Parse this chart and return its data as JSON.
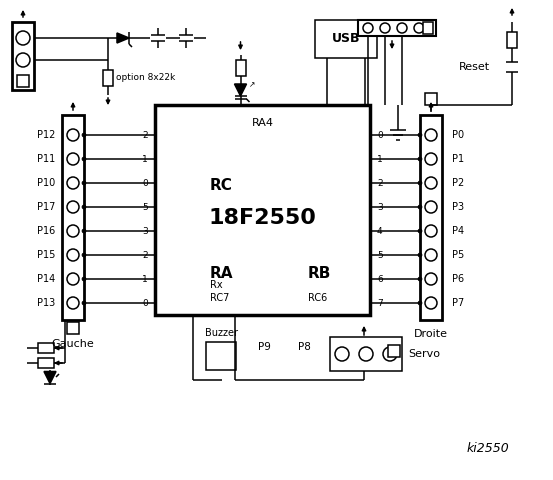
{
  "title": "ki2550",
  "bg_color": "#ffffff",
  "chip_label": "18F2550",
  "chip_ra4": "RA4",
  "rc_label": "RC",
  "ra_label": "RA",
  "rb_label": "RB",
  "option_label": "option 8x22k",
  "reset_label": "Reset",
  "usb_label": "USB",
  "rx_label": "Rx",
  "rc7_label": "RC7",
  "rc6_label": "RC6",
  "left_labels": [
    "P12",
    "P11",
    "P10",
    "P17",
    "P16",
    "P15",
    "P14",
    "P13"
  ],
  "right_labels": [
    "P0",
    "P1",
    "P2",
    "P3",
    "P4",
    "P5",
    "P6",
    "P7"
  ],
  "rc_nums": [
    "2",
    "1",
    "0"
  ],
  "ra_nums": [
    "5",
    "3",
    "2",
    "1",
    "0"
  ],
  "rb_nums": [
    "0",
    "1",
    "2",
    "3",
    "4",
    "5",
    "6",
    "7"
  ],
  "gauche_label": "Gauche",
  "droite_label": "Droite",
  "buzzer_label": "Buzzer",
  "p9_label": "P9",
  "p8_label": "P8",
  "servo_label": "Servo"
}
